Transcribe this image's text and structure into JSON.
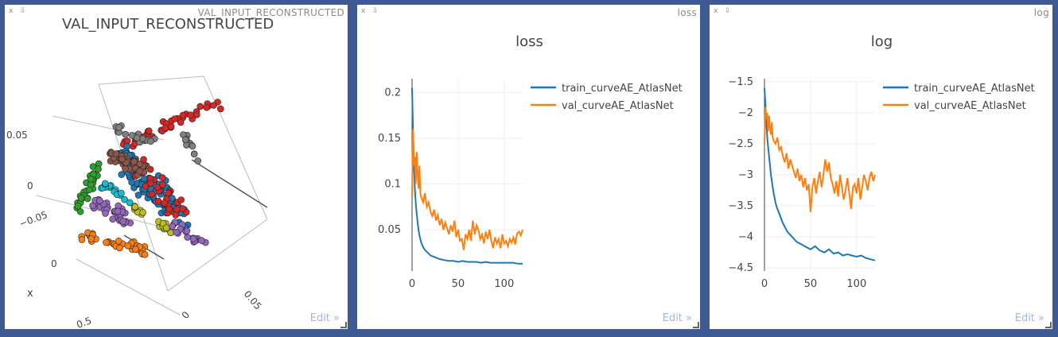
{
  "panes": [
    {
      "window_title": "VAL_INPUT_RECONSTRUCTED",
      "close_label": "x",
      "pin_label": "⇩",
      "edit_label": "Edit »"
    },
    {
      "window_title": "loss",
      "close_label": "x",
      "pin_label": "⇩",
      "edit_label": "Edit »"
    },
    {
      "window_title": "log",
      "close_label": "x",
      "pin_label": "⇩",
      "edit_label": "Edit »"
    }
  ],
  "chart_data": [
    {
      "type": "scatter3d",
      "title": "VAL_INPUT_RECONSTRUCTED",
      "tick_labels": [
        "0.05",
        "0",
        "−0.05",
        "0",
        "x",
        "0.5",
        "0",
        "0.05"
      ],
      "colors": [
        "#d62728",
        "#1f77b4",
        "#ff7f0e",
        "#2ca02c",
        "#9467bd",
        "#8c564b",
        "#7f7f7f",
        "#bcbd22",
        "#17becf",
        "#e377c2"
      ]
    },
    {
      "type": "line",
      "title": "loss",
      "xlim": [
        0,
        120
      ],
      "ylim": [
        0.005,
        0.215
      ],
      "xticks": [
        0,
        50,
        100
      ],
      "yticks": [
        0.05,
        0.1,
        0.15,
        0.2
      ],
      "ytick_labels": [
        "0.05",
        "0.1",
        "0.15",
        "0.2"
      ],
      "legend_position": "right",
      "series": [
        {
          "name": "train_curveAE_AtlasNet",
          "color": "#1f77b4",
          "x": [
            0,
            1,
            2,
            3,
            4,
            5,
            6,
            7,
            8,
            9,
            10,
            12,
            14,
            16,
            18,
            20,
            25,
            30,
            35,
            40,
            45,
            50,
            55,
            60,
            65,
            70,
            75,
            80,
            85,
            90,
            95,
            100,
            105,
            110,
            115,
            120
          ],
          "y": [
            0.205,
            0.16,
            0.12,
            0.095,
            0.08,
            0.068,
            0.058,
            0.05,
            0.044,
            0.04,
            0.036,
            0.031,
            0.028,
            0.026,
            0.024,
            0.022,
            0.02,
            0.018,
            0.017,
            0.016,
            0.016,
            0.015,
            0.016,
            0.015,
            0.015,
            0.015,
            0.014,
            0.015,
            0.014,
            0.014,
            0.014,
            0.014,
            0.014,
            0.014,
            0.013,
            0.013
          ]
        },
        {
          "name": "val_curveAE_AtlasNet",
          "color": "#ff7f0e",
          "x": [
            0,
            1,
            2,
            3,
            4,
            5,
            6,
            7,
            8,
            9,
            10,
            12,
            14,
            16,
            18,
            20,
            22,
            24,
            26,
            28,
            30,
            32,
            34,
            36,
            38,
            40,
            42,
            44,
            46,
            48,
            50,
            52,
            54,
            56,
            58,
            60,
            62,
            64,
            66,
            68,
            70,
            72,
            74,
            76,
            78,
            80,
            82,
            84,
            86,
            88,
            90,
            92,
            94,
            96,
            98,
            100,
            102,
            104,
            106,
            108,
            110,
            112,
            114,
            116,
            118,
            120
          ],
          "y": [
            0.085,
            0.16,
            0.12,
            0.13,
            0.1,
            0.135,
            0.11,
            0.095,
            0.12,
            0.09,
            0.085,
            0.08,
            0.09,
            0.075,
            0.08,
            0.07,
            0.065,
            0.072,
            0.06,
            0.066,
            0.055,
            0.062,
            0.05,
            0.058,
            0.052,
            0.045,
            0.055,
            0.048,
            0.06,
            0.042,
            0.05,
            0.038,
            0.04,
            0.028,
            0.045,
            0.04,
            0.05,
            0.038,
            0.06,
            0.045,
            0.055,
            0.05,
            0.04,
            0.045,
            0.035,
            0.048,
            0.04,
            0.05,
            0.038,
            0.03,
            0.042,
            0.035,
            0.04,
            0.03,
            0.045,
            0.035,
            0.038,
            0.032,
            0.04,
            0.036,
            0.042,
            0.034,
            0.046,
            0.048,
            0.044,
            0.05
          ]
        }
      ]
    },
    {
      "type": "line",
      "title": "log",
      "xlim": [
        0,
        120
      ],
      "ylim": [
        -4.55,
        -1.45
      ],
      "xticks": [
        0,
        50,
        100
      ],
      "yticks": [
        -4.5,
        -4,
        -3.5,
        -3,
        -2.5,
        -2,
        -1.5
      ],
      "ytick_labels": [
        "−4.5",
        "−4",
        "−3.5",
        "−3",
        "−2.5",
        "−2",
        "−1.5"
      ],
      "legend_position": "right",
      "series": [
        {
          "name": "train_curveAE_AtlasNet",
          "color": "#1f77b4",
          "x": [
            0,
            1,
            2,
            3,
            4,
            5,
            6,
            7,
            8,
            9,
            10,
            12,
            14,
            16,
            18,
            20,
            25,
            30,
            35,
            40,
            45,
            50,
            55,
            60,
            65,
            70,
            75,
            80,
            85,
            90,
            95,
            100,
            105,
            110,
            115,
            120
          ],
          "y": [
            -1.6,
            -1.85,
            -2.15,
            -2.4,
            -2.55,
            -2.7,
            -2.85,
            -3.0,
            -3.1,
            -3.2,
            -3.3,
            -3.45,
            -3.55,
            -3.62,
            -3.7,
            -3.78,
            -3.92,
            -4.0,
            -4.08,
            -4.12,
            -4.16,
            -4.2,
            -4.15,
            -4.22,
            -4.25,
            -4.2,
            -4.27,
            -4.25,
            -4.3,
            -4.28,
            -4.3,
            -4.32,
            -4.3,
            -4.34,
            -4.36,
            -4.38
          ]
        },
        {
          "name": "val_curveAE_AtlasNet",
          "color": "#ff7f0e",
          "x": [
            0,
            1,
            2,
            3,
            4,
            5,
            6,
            7,
            8,
            9,
            10,
            12,
            14,
            16,
            18,
            20,
            22,
            24,
            26,
            28,
            30,
            32,
            34,
            36,
            38,
            40,
            42,
            44,
            46,
            48,
            50,
            52,
            54,
            56,
            58,
            60,
            62,
            64,
            66,
            68,
            70,
            72,
            74,
            76,
            78,
            80,
            82,
            84,
            86,
            88,
            90,
            92,
            94,
            96,
            98,
            100,
            102,
            104,
            106,
            108,
            110,
            112,
            114,
            116,
            118,
            120
          ],
          "y": [
            -2.5,
            -1.9,
            -2.1,
            -2.0,
            -2.3,
            -2.05,
            -2.25,
            -2.35,
            -2.15,
            -2.4,
            -2.45,
            -2.5,
            -2.4,
            -2.6,
            -2.55,
            -2.7,
            -2.8,
            -2.65,
            -2.9,
            -2.75,
            -2.85,
            -2.95,
            -3.05,
            -2.9,
            -3.1,
            -3.0,
            -3.2,
            -3.05,
            -3.25,
            -3.15,
            -3.6,
            -3.2,
            -3.05,
            -3.3,
            -3.1,
            -2.95,
            -3.2,
            -3.0,
            -2.75,
            -2.95,
            -2.8,
            -3.05,
            -3.15,
            -3.3,
            -3.1,
            -3.35,
            -3.0,
            -3.2,
            -3.4,
            -3.25,
            -3.05,
            -3.3,
            -3.55,
            -3.2,
            -3.15,
            -3.3,
            -3.05,
            -3.4,
            -3.2,
            -3.0,
            -3.1,
            -3.25,
            -3.05,
            -2.95,
            -3.1,
            -3.0
          ]
        }
      ]
    }
  ]
}
